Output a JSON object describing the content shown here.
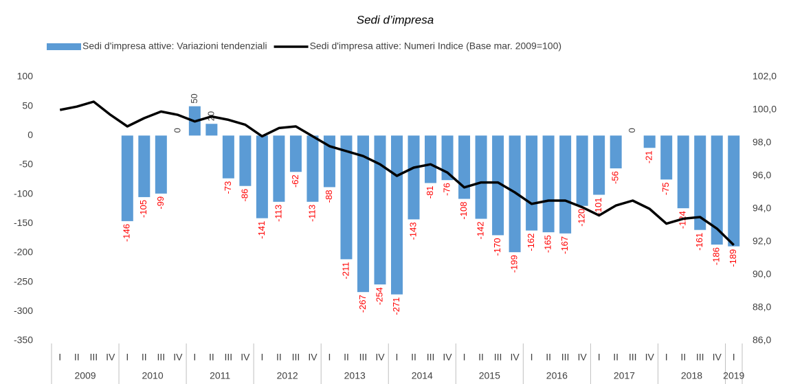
{
  "chart_data": {
    "type": "bar_line",
    "title": "Sedi d’impresa",
    "categories": [
      "I",
      "II",
      "III",
      "IV",
      "I",
      "II",
      "III",
      "IV",
      "I",
      "II",
      "III",
      "IV",
      "I",
      "II",
      "III",
      "IV",
      "I",
      "II",
      "III",
      "IV",
      "I",
      "II",
      "III",
      "IV",
      "I",
      "II",
      "III",
      "IV",
      "I",
      "II",
      "III",
      "IV",
      "I",
      "II",
      "III",
      "IV",
      "I",
      "II",
      "III",
      "IV",
      "I"
    ],
    "years": [
      "2009",
      "2010",
      "2011",
      "2012",
      "2013",
      "2014",
      "2015",
      "2016",
      "2017",
      "2018",
      "2019"
    ],
    "series": [
      {
        "name": "Sedi d'impresa attive: Variazioni tendenziali",
        "color": "#5b9bd5",
        "axis": "y",
        "label_color": "#ff0000",
        "values": [
          null,
          null,
          null,
          null,
          -146,
          -105,
          -99,
          0,
          50,
          20,
          -73,
          -86,
          -141,
          -113,
          -62,
          -113,
          -88,
          -211,
          -267,
          -254,
          -271,
          -143,
          -81,
          -76,
          -108,
          -142,
          -170,
          -199,
          -162,
          -165,
          -167,
          -120,
          -101,
          -56,
          0,
          -21,
          -75,
          -124,
          -161,
          -186,
          -189
        ]
      },
      {
        "name": "Sedi d'impresa attive: Numeri Indice (Base mar. 2009=100)",
        "color": "#000000",
        "axis": "y2",
        "values": [
          100.0,
          100.2,
          100.5,
          99.7,
          99.0,
          99.5,
          99.9,
          99.7,
          99.3,
          99.6,
          99.4,
          99.1,
          98.4,
          98.9,
          99.0,
          98.4,
          97.8,
          97.5,
          97.2,
          96.7,
          96.0,
          96.5,
          96.7,
          96.2,
          95.3,
          95.6,
          95.6,
          95.0,
          94.3,
          94.5,
          94.5,
          94.1,
          93.6,
          94.2,
          94.5,
          94.0,
          93.1,
          93.4,
          93.5,
          92.8,
          91.8
        ]
      }
    ],
    "ylim": [
      -350,
      100
    ],
    "yticks": [
      -350,
      -300,
      -250,
      -200,
      -150,
      -100,
      -50,
      0,
      50,
      100
    ],
    "y2lim": [
      86,
      102
    ],
    "y2ticks": [
      {
        "value": 86,
        "label": "86,0"
      },
      {
        "value": 88,
        "label": "88,0"
      },
      {
        "value": 90,
        "label": "90,0"
      },
      {
        "value": 92,
        "label": "92,0"
      },
      {
        "value": 94,
        "label": "94,0"
      },
      {
        "value": 96,
        "label": "96,0"
      },
      {
        "value": 98,
        "label": "98,0"
      },
      {
        "value": 100,
        "label": "100,0"
      },
      {
        "value": 102,
        "label": "102,0"
      }
    ],
    "legend": "top"
  }
}
